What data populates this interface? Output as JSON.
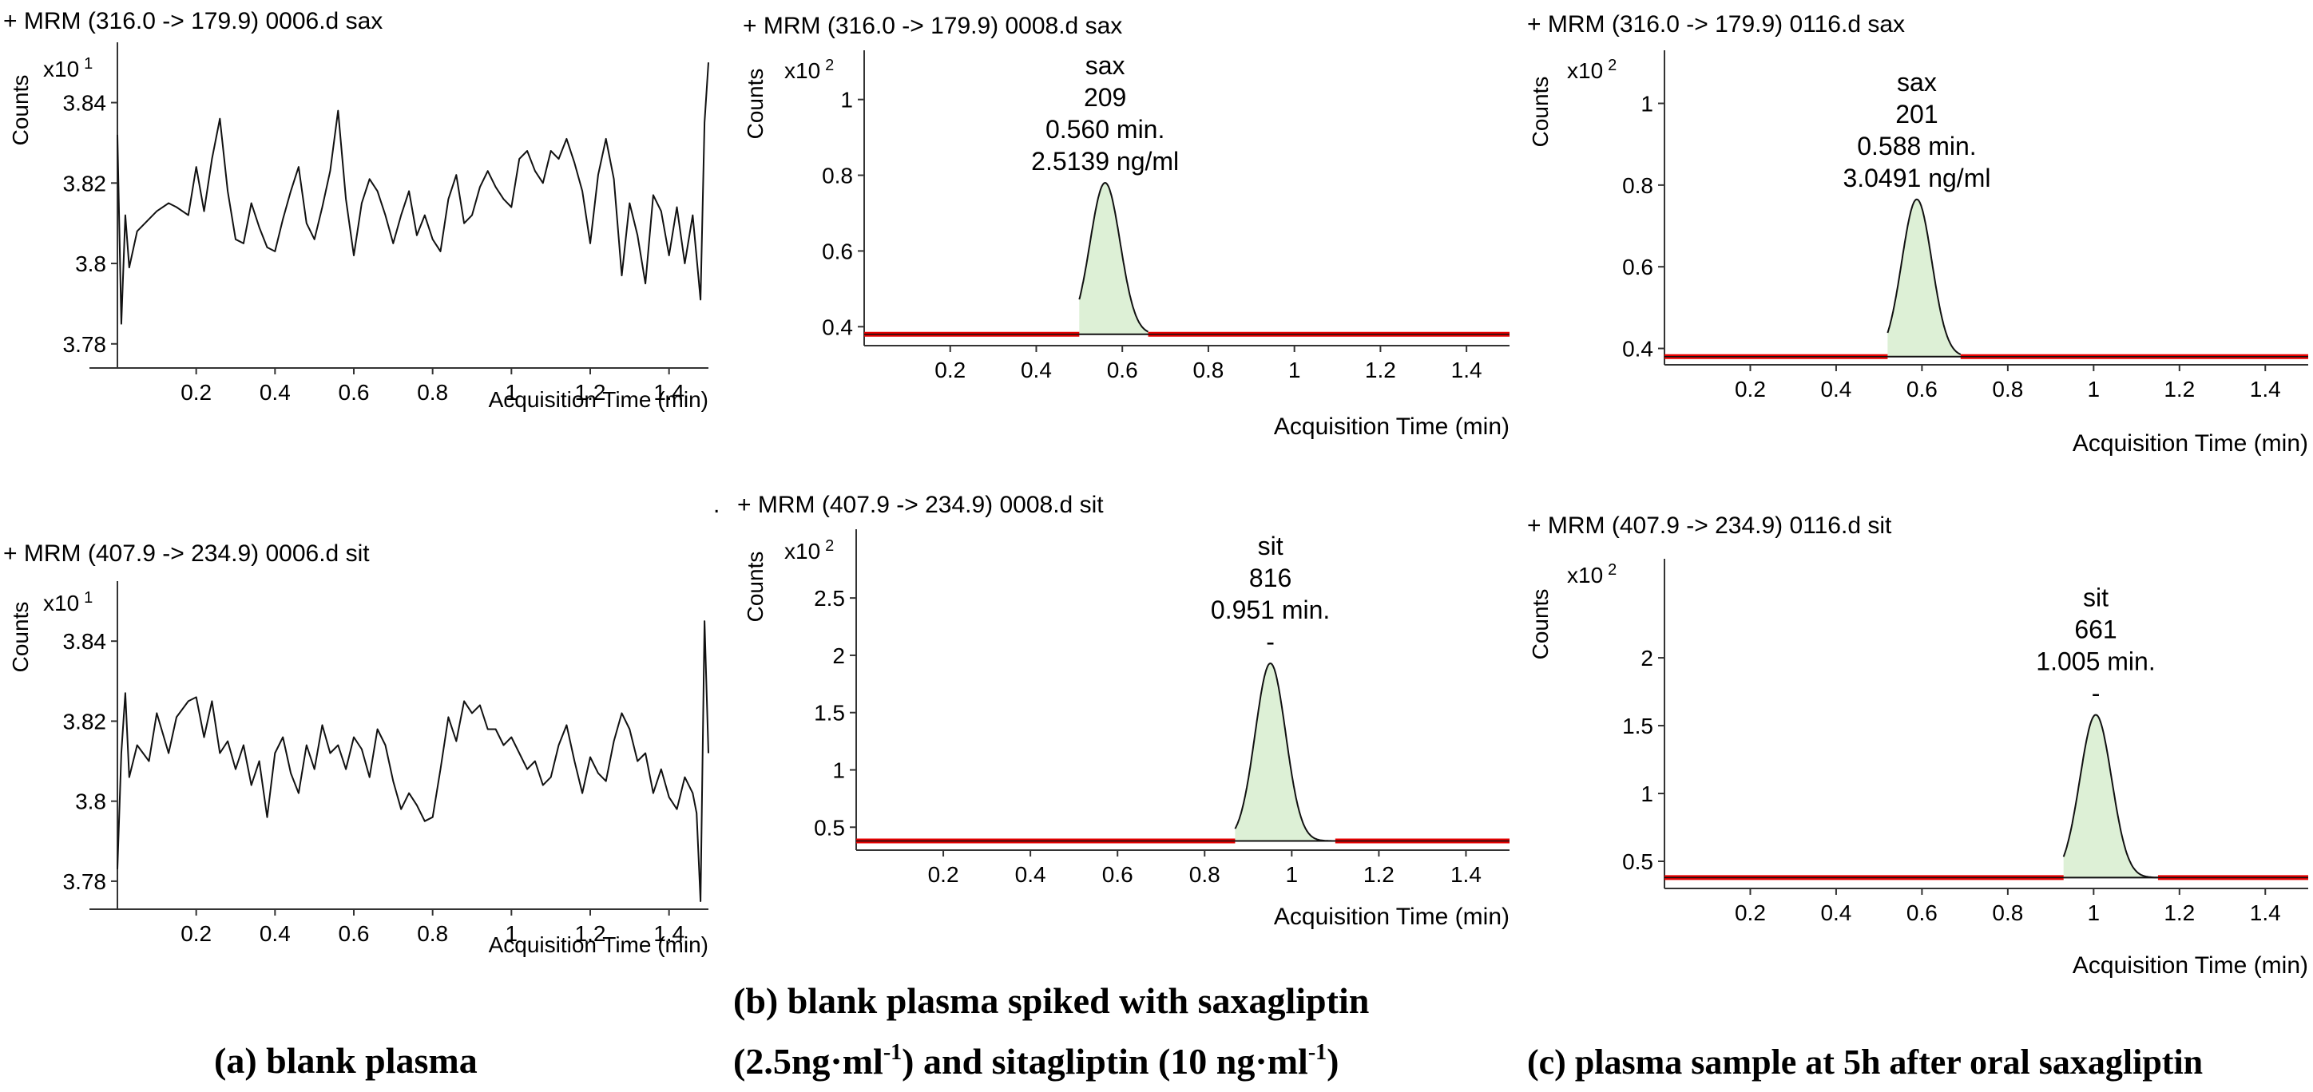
{
  "figure": {
    "stray_dot": ".",
    "captions": {
      "a": "(a) blank plasma",
      "b_line1": "(b) blank plasma spiked with saxagliptin",
      "b_line2_prefix": "(2.5ng·ml",
      "b_line2_sup1": "-1",
      "b_line2_mid": ") and sitagliptin (10 ng·ml",
      "b_line2_sup2": "-1",
      "b_line2_suffix": ")",
      "c": "(c) plasma sample at 5h after oral saxagliptin"
    }
  },
  "chart_data": [
    {
      "id": "a_sax",
      "type": "line",
      "title": "+ MRM (316.0 -> 179.9) 0006.d sax",
      "ylabel": "Counts",
      "multiplier_base": "x10",
      "multiplier_exp": "1",
      "xlabel": "Acquisition Time (min)",
      "xlim": [
        0,
        1.5
      ],
      "ylim": [
        3.774,
        3.855
      ],
      "xticks": [
        "0.2",
        "0.4",
        "0.6",
        "0.8",
        "1",
        "1.2",
        "1.4"
      ],
      "yticks": [
        "3.78",
        "3.8",
        "3.82",
        "3.84"
      ],
      "x": [
        0.0,
        0.01,
        0.02,
        0.03,
        0.05,
        0.08,
        0.1,
        0.13,
        0.15,
        0.18,
        0.2,
        0.22,
        0.24,
        0.26,
        0.28,
        0.3,
        0.32,
        0.34,
        0.36,
        0.38,
        0.4,
        0.42,
        0.44,
        0.46,
        0.48,
        0.5,
        0.52,
        0.54,
        0.56,
        0.58,
        0.6,
        0.62,
        0.64,
        0.66,
        0.68,
        0.7,
        0.72,
        0.74,
        0.76,
        0.78,
        0.8,
        0.82,
        0.84,
        0.86,
        0.88,
        0.9,
        0.92,
        0.94,
        0.96,
        0.98,
        1.0,
        1.02,
        1.04,
        1.06,
        1.08,
        1.1,
        1.12,
        1.14,
        1.16,
        1.18,
        1.2,
        1.22,
        1.24,
        1.26,
        1.28,
        1.3,
        1.32,
        1.34,
        1.36,
        1.38,
        1.4,
        1.42,
        1.44,
        1.46,
        1.48,
        1.49,
        1.5
      ],
      "y": [
        3.832,
        3.785,
        3.812,
        3.799,
        3.808,
        3.811,
        3.813,
        3.815,
        3.814,
        3.812,
        3.824,
        3.813,
        3.826,
        3.836,
        3.818,
        3.806,
        3.805,
        3.815,
        3.809,
        3.804,
        3.803,
        3.811,
        3.818,
        3.824,
        3.81,
        3.806,
        3.814,
        3.823,
        3.838,
        3.816,
        3.802,
        3.815,
        3.821,
        3.818,
        3.812,
        3.805,
        3.812,
        3.818,
        3.807,
        3.812,
        3.806,
        3.803,
        3.816,
        3.822,
        3.81,
        3.812,
        3.819,
        3.823,
        3.819,
        3.816,
        3.814,
        3.826,
        3.828,
        3.823,
        3.82,
        3.828,
        3.826,
        3.831,
        3.825,
        3.818,
        3.805,
        3.822,
        3.831,
        3.821,
        3.797,
        3.815,
        3.807,
        3.795,
        3.817,
        3.813,
        3.802,
        3.814,
        3.8,
        3.812,
        3.791,
        3.835,
        3.85
      ]
    },
    {
      "id": "b_sax",
      "type": "line",
      "title": "+ MRM (316.0 -> 179.9) 0008.d sax",
      "ylabel": "Counts",
      "multiplier_base": "x10",
      "multiplier_exp": "2",
      "xlabel": "Acquisition Time (min)",
      "xlim": [
        0,
        1.5
      ],
      "ylim": [
        0.35,
        1.13
      ],
      "xticks": [
        "0.2",
        "0.4",
        "0.6",
        "0.8",
        "1",
        "1.2",
        "1.4"
      ],
      "yticks": [
        "0.4",
        "0.6",
        "0.8",
        "1"
      ],
      "baseline": 0.38,
      "peak": {
        "center": 0.56,
        "sigma": 0.035,
        "height": 0.4,
        "start": 0.5,
        "end": 0.66
      },
      "annotation": [
        "sax",
        "209",
        "0.560 min.",
        "2.5139 ng/ml"
      ]
    },
    {
      "id": "b_sit",
      "type": "line",
      "title": "+ MRM (407.9 -> 234.9) 0008.d sit",
      "ylabel": "Counts",
      "multiplier_base": "x10",
      "multiplier_exp": "2",
      "xlabel": "Acquisition Time (min)",
      "xlim": [
        0,
        1.5
      ],
      "ylim": [
        0.3,
        3.1
      ],
      "xticks": [
        "0.2",
        "0.4",
        "0.6",
        "0.8",
        "1",
        "1.2",
        "1.4"
      ],
      "yticks": [
        "0.5",
        "1",
        "1.5",
        "2",
        "2.5"
      ],
      "baseline": 0.38,
      "peak": {
        "center": 0.951,
        "sigma": 0.035,
        "height": 1.55,
        "start": 0.87,
        "end": 1.1
      },
      "annotation": [
        "sit",
        "816",
        "0.951 min.",
        "-"
      ]
    },
    {
      "id": "c_sax",
      "type": "line",
      "title": "+ MRM (316.0 -> 179.9) 0116.d sax",
      "ylabel": "Counts",
      "multiplier_base": "x10",
      "multiplier_exp": "2",
      "xlabel": "Acquisition Time (min)",
      "xlim": [
        0,
        1.5
      ],
      "ylim": [
        0.36,
        1.13
      ],
      "xticks": [
        "0.2",
        "0.4",
        "0.6",
        "0.8",
        "1",
        "1.2",
        "1.4"
      ],
      "yticks": [
        "0.4",
        "0.6",
        "0.8",
        "1"
      ],
      "baseline": 0.38,
      "peak": {
        "center": 0.588,
        "sigma": 0.035,
        "height": 0.385,
        "start": 0.52,
        "end": 0.69
      },
      "annotation": [
        "sax",
        "201",
        "0.588 min.",
        "3.0491 ng/ml"
      ]
    },
    {
      "id": "c_sit",
      "type": "line",
      "title": "+ MRM (407.9 -> 234.9) 0116.d sit",
      "ylabel": "Counts",
      "multiplier_base": "x10",
      "multiplier_exp": "2",
      "xlabel": "Acquisition Time (min)",
      "xlim": [
        0,
        1.5
      ],
      "ylim": [
        0.3,
        2.73
      ],
      "xticks": [
        "0.2",
        "0.4",
        "0.6",
        "0.8",
        "1",
        "1.2",
        "1.4"
      ],
      "yticks": [
        "0.5",
        "1",
        "1.5",
        "2"
      ],
      "baseline": 0.38,
      "peak": {
        "center": 1.005,
        "sigma": 0.037,
        "height": 1.2,
        "start": 0.93,
        "end": 1.15
      },
      "annotation": [
        "sit",
        "661",
        "1.005 min.",
        "-"
      ]
    },
    {
      "id": "a_sit",
      "type": "line",
      "title": "+ MRM (407.9 -> 234.9) 0006.d sit",
      "ylabel": "Counts",
      "multiplier_base": "x10",
      "multiplier_exp": "1",
      "xlabel": "Acquisition Time (min)",
      "xlim": [
        0,
        1.5
      ],
      "ylim": [
        3.773,
        3.855
      ],
      "xticks": [
        "0.2",
        "0.4",
        "0.6",
        "0.8",
        "1",
        "1.2",
        "1.4"
      ],
      "yticks": [
        "3.78",
        "3.8",
        "3.82",
        "3.84"
      ],
      "x": [
        0.0,
        0.01,
        0.02,
        0.03,
        0.05,
        0.08,
        0.1,
        0.13,
        0.15,
        0.18,
        0.2,
        0.22,
        0.24,
        0.26,
        0.28,
        0.3,
        0.32,
        0.34,
        0.36,
        0.38,
        0.4,
        0.42,
        0.44,
        0.46,
        0.48,
        0.5,
        0.52,
        0.54,
        0.56,
        0.58,
        0.6,
        0.62,
        0.64,
        0.66,
        0.68,
        0.7,
        0.72,
        0.74,
        0.76,
        0.78,
        0.8,
        0.82,
        0.84,
        0.86,
        0.88,
        0.9,
        0.92,
        0.94,
        0.96,
        0.98,
        1.0,
        1.02,
        1.04,
        1.06,
        1.08,
        1.1,
        1.12,
        1.14,
        1.16,
        1.18,
        1.2,
        1.22,
        1.24,
        1.26,
        1.28,
        1.3,
        1.32,
        1.34,
        1.36,
        1.38,
        1.4,
        1.42,
        1.44,
        1.46,
        1.47,
        1.48,
        1.49,
        1.5
      ],
      "y": [
        3.783,
        3.812,
        3.827,
        3.806,
        3.814,
        3.81,
        3.822,
        3.812,
        3.821,
        3.825,
        3.826,
        3.816,
        3.825,
        3.812,
        3.815,
        3.808,
        3.814,
        3.804,
        3.81,
        3.796,
        3.812,
        3.816,
        3.807,
        3.802,
        3.814,
        3.808,
        3.819,
        3.812,
        3.814,
        3.808,
        3.816,
        3.813,
        3.806,
        3.818,
        3.814,
        3.805,
        3.798,
        3.802,
        3.799,
        3.795,
        3.796,
        3.808,
        3.821,
        3.815,
        3.825,
        3.822,
        3.824,
        3.818,
        3.818,
        3.814,
        3.816,
        3.812,
        3.808,
        3.81,
        3.804,
        3.806,
        3.814,
        3.819,
        3.81,
        3.802,
        3.811,
        3.807,
        3.805,
        3.815,
        3.822,
        3.818,
        3.81,
        3.812,
        3.802,
        3.808,
        3.801,
        3.798,
        3.806,
        3.802,
        3.797,
        3.775,
        3.845,
        3.812
      ]
    }
  ]
}
